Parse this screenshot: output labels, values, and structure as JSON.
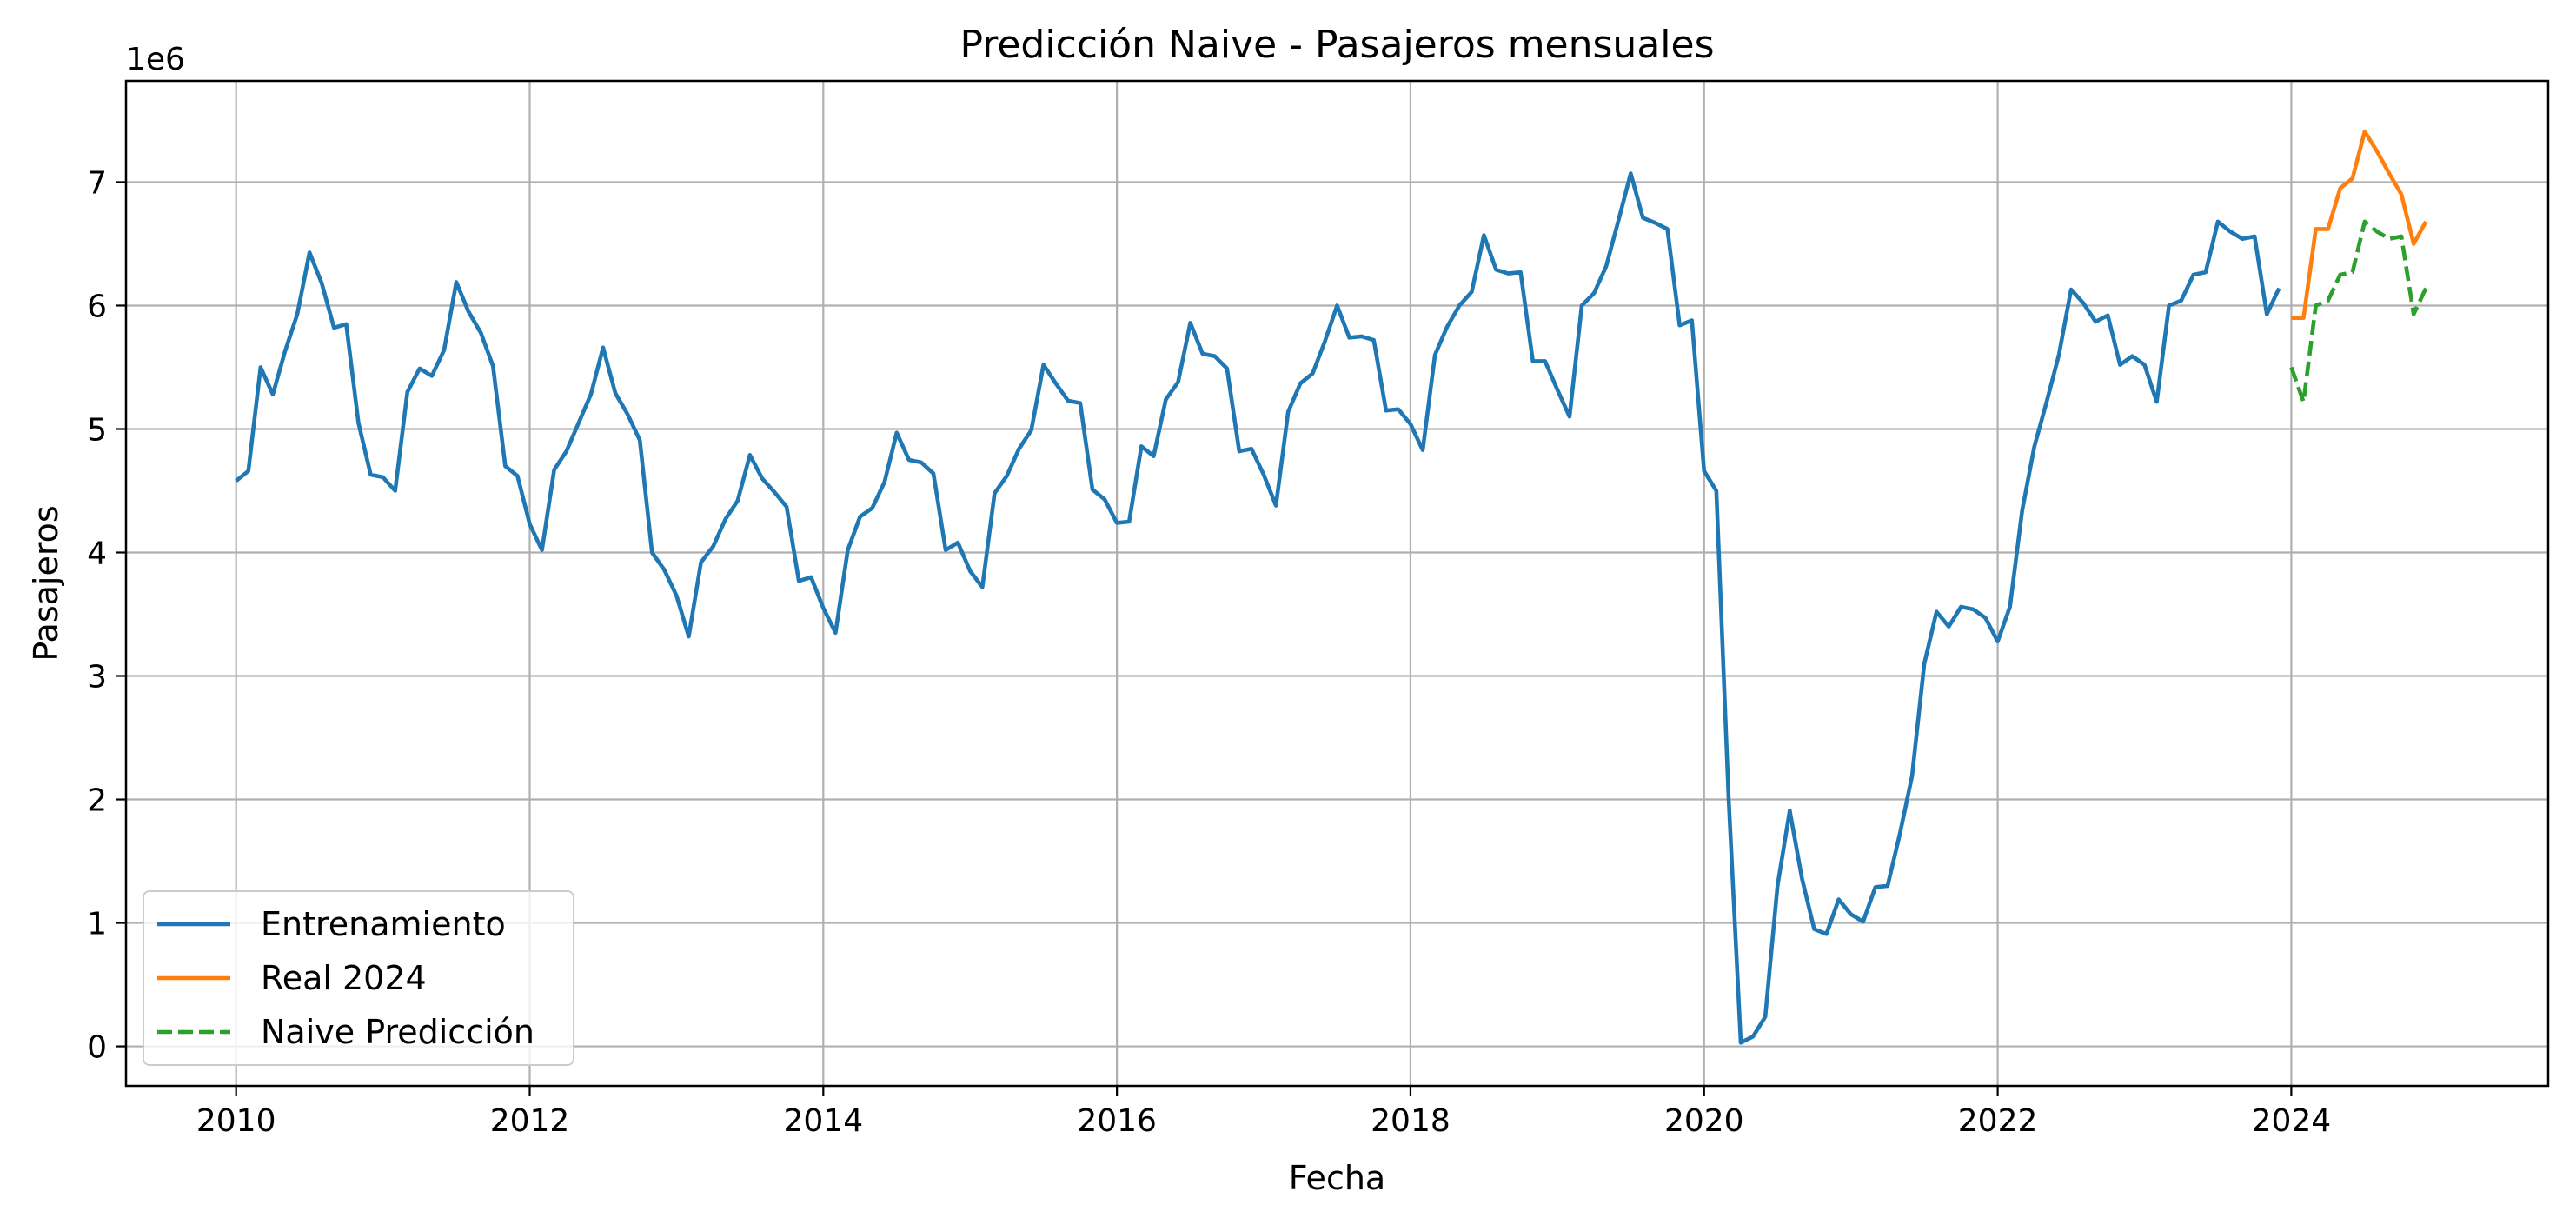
{
  "chart_data": {
    "type": "line",
    "title": "Predicción Naive - Pasajeros mensuales",
    "xlabel": "Fecha",
    "ylabel": "Pasajeros",
    "y_offset_label": "1e6",
    "xlim": [
      2009.25,
      2025.75
    ],
    "ylim": [
      -0.32,
      7.82
    ],
    "x_ticks": [
      2010,
      2012,
      2014,
      2016,
      2018,
      2020,
      2022,
      2024
    ],
    "y_ticks": [
      0,
      1,
      2,
      3,
      4,
      5,
      6,
      7
    ],
    "grid": true,
    "legend": "lower-left",
    "series": [
      {
        "name": "Entrenamiento",
        "color": "#1f77b4",
        "style": "solid",
        "x_start": "2010-01",
        "step": "month",
        "y": [
          4.58,
          4.66,
          5.5,
          5.28,
          5.63,
          5.93,
          6.43,
          6.18,
          5.82,
          5.85,
          5.05,
          4.63,
          4.61,
          4.5,
          5.3,
          5.49,
          5.43,
          5.64,
          6.19,
          5.95,
          5.78,
          5.51,
          4.7,
          4.62,
          4.23,
          4.02,
          4.67,
          4.82,
          5.05,
          5.28,
          5.66,
          5.29,
          5.12,
          4.91,
          4.0,
          3.86,
          3.65,
          3.32,
          3.92,
          4.05,
          4.27,
          4.42,
          4.79,
          4.6,
          4.49,
          4.37,
          3.77,
          3.8,
          3.55,
          3.35,
          4.02,
          4.29,
          4.36,
          4.57,
          4.97,
          4.75,
          4.73,
          4.64,
          4.02,
          4.08,
          3.85,
          3.72,
          4.48,
          4.62,
          4.84,
          4.99,
          5.52,
          5.37,
          5.23,
          5.21,
          4.51,
          4.43,
          4.24,
          4.25,
          4.86,
          4.78,
          5.24,
          5.38,
          5.86,
          5.61,
          5.59,
          5.49,
          4.82,
          4.84,
          4.63,
          4.38,
          5.14,
          5.37,
          5.45,
          5.71,
          6.0,
          5.74,
          5.75,
          5.72,
          5.15,
          5.16,
          5.04,
          4.83,
          5.6,
          5.83,
          6.0,
          6.11,
          6.57,
          6.29,
          6.26,
          6.27,
          5.55,
          5.55,
          5.32,
          5.1,
          6.0,
          6.1,
          6.32,
          6.69,
          7.07,
          6.71,
          6.67,
          6.62,
          5.84,
          5.88,
          4.66,
          4.5,
          2.02,
          0.03,
          0.08,
          0.24,
          1.3,
          1.91,
          1.36,
          0.95,
          0.91,
          1.19,
          1.07,
          1.01,
          1.29,
          1.3,
          1.72,
          2.19,
          3.1,
          3.52,
          3.4,
          3.56,
          3.54,
          3.47,
          3.28,
          3.56,
          4.34,
          4.86,
          5.22,
          5.6,
          6.13,
          6.02,
          5.87,
          5.92,
          5.52,
          5.59,
          5.52,
          5.22,
          6.0,
          6.04,
          6.25,
          6.27,
          6.68,
          6.6,
          6.54,
          6.56,
          5.93,
          6.14
        ]
      },
      {
        "name": "Real 2024",
        "color": "#ff7f0e",
        "style": "solid",
        "x_start": "2024-01",
        "step": "month",
        "y": [
          5.9,
          5.9,
          6.62,
          6.62,
          6.95,
          7.03,
          7.41,
          7.25,
          7.07,
          6.9,
          6.5,
          6.68
        ]
      },
      {
        "name": "Naive Predicción",
        "color": "#2ca02c",
        "style": "dashed",
        "x_start": "2024-01",
        "step": "month",
        "y": [
          5.5,
          5.22,
          6.0,
          6.04,
          6.25,
          6.27,
          6.68,
          6.6,
          6.54,
          6.56,
          5.93,
          6.14
        ]
      }
    ]
  }
}
